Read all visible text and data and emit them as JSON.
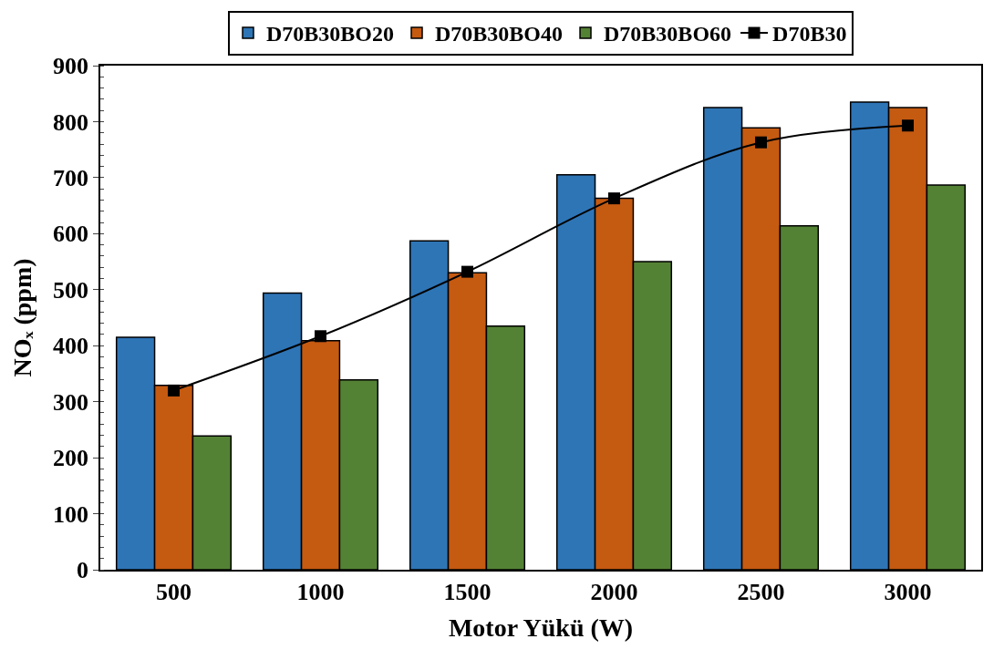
{
  "chart_data": {
    "type": "bar",
    "xlabel": "Motor Yükü (W)",
    "ylabel": "NOₓ (ppm)",
    "categories": [
      "500",
      "1000",
      "1500",
      "2000",
      "2500",
      "3000"
    ],
    "ylim": [
      0,
      900
    ],
    "yticks": [
      0,
      100,
      200,
      300,
      400,
      500,
      600,
      700,
      800,
      900
    ],
    "legend": "top",
    "series": [
      {
        "name": "D70B30BO20",
        "color": "#2e75b6",
        "values": [
          415,
          494,
          587,
          705,
          825,
          835
        ]
      },
      {
        "name": "D70B30BO40",
        "color": "#c55a11",
        "values": [
          329,
          409,
          530,
          663,
          789,
          825
        ]
      },
      {
        "name": "D70B30BO60",
        "color": "#548235",
        "values": [
          239,
          339,
          435,
          550,
          614,
          687
        ]
      },
      {
        "name": "D70B30",
        "type": "line",
        "color": "#000000",
        "marker": "square",
        "line_style": "solid",
        "values": [
          320,
          417,
          532,
          663,
          763,
          793
        ]
      }
    ]
  }
}
